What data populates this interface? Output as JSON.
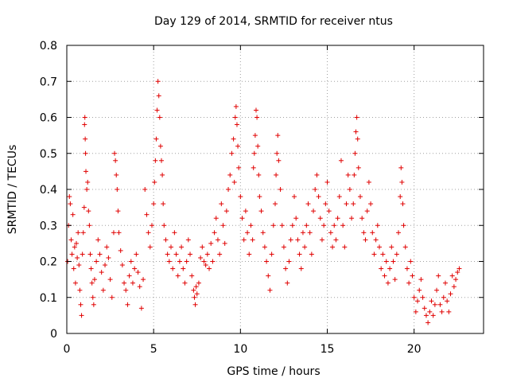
{
  "chart_data": {
    "type": "scatter",
    "title": "Day 129 of 2014, SRMTID for receiver ntus",
    "xlabel": "GPS time / hours",
    "ylabel": "SRMTID / TECUs",
    "xlim": [
      0,
      24
    ],
    "ylim": [
      0,
      0.8
    ],
    "xticks": [
      0,
      5,
      10,
      15,
      20
    ],
    "xtick_labels": [
      "0",
      "5",
      "10",
      "15",
      "20"
    ],
    "yticks": [
      0,
      0.1,
      0.2,
      0.3,
      0.4,
      0.5,
      0.6,
      0.7,
      0.8
    ],
    "ytick_labels": [
      "0",
      "0.1",
      "0.2",
      "0.3",
      "0.4",
      "0.5",
      "0.6",
      "0.7",
      "0.8"
    ],
    "grid": true,
    "marker": "+",
    "color": "#e00000",
    "series": [
      {
        "name": "SRMTID",
        "points": [
          [
            0.05,
            0.2
          ],
          [
            0.1,
            0.3
          ],
          [
            0.15,
            0.38
          ],
          [
            0.2,
            0.36
          ],
          [
            0.25,
            0.26
          ],
          [
            0.3,
            0.22
          ],
          [
            0.35,
            0.33
          ],
          [
            0.4,
            0.18
          ],
          [
            0.45,
            0.24
          ],
          [
            0.5,
            0.14
          ],
          [
            0.55,
            0.25
          ],
          [
            0.6,
            0.21
          ],
          [
            0.65,
            0.28
          ],
          [
            0.7,
            0.19
          ],
          [
            0.75,
            0.12
          ],
          [
            0.8,
            0.08
          ],
          [
            0.85,
            0.05
          ],
          [
            0.9,
            0.22
          ],
          [
            0.95,
            0.28
          ],
          [
            1.0,
            0.35
          ],
          [
            1.02,
            0.58
          ],
          [
            1.04,
            0.6
          ],
          [
            1.06,
            0.54
          ],
          [
            1.08,
            0.5
          ],
          [
            1.1,
            0.45
          ],
          [
            1.15,
            0.4
          ],
          [
            1.2,
            0.42
          ],
          [
            1.25,
            0.34
          ],
          [
            1.3,
            0.3
          ],
          [
            1.35,
            0.22
          ],
          [
            1.4,
            0.18
          ],
          [
            1.45,
            0.14
          ],
          [
            1.5,
            0.1
          ],
          [
            1.55,
            0.08
          ],
          [
            1.6,
            0.15
          ],
          [
            1.7,
            0.2
          ],
          [
            1.8,
            0.26
          ],
          [
            1.9,
            0.22
          ],
          [
            2.0,
            0.17
          ],
          [
            2.1,
            0.12
          ],
          [
            2.2,
            0.19
          ],
          [
            2.3,
            0.24
          ],
          [
            2.4,
            0.21
          ],
          [
            2.5,
            0.15
          ],
          [
            2.6,
            0.1
          ],
          [
            2.7,
            0.28
          ],
          [
            2.75,
            0.5
          ],
          [
            2.8,
            0.48
          ],
          [
            2.85,
            0.44
          ],
          [
            2.9,
            0.4
          ],
          [
            2.95,
            0.34
          ],
          [
            3.0,
            0.28
          ],
          [
            3.1,
            0.23
          ],
          [
            3.2,
            0.19
          ],
          [
            3.3,
            0.14
          ],
          [
            3.4,
            0.12
          ],
          [
            3.5,
            0.08
          ],
          [
            3.6,
            0.16
          ],
          [
            3.7,
            0.2
          ],
          [
            3.8,
            0.14
          ],
          [
            3.9,
            0.18
          ],
          [
            4.0,
            0.22
          ],
          [
            4.1,
            0.17
          ],
          [
            4.2,
            0.13
          ],
          [
            4.3,
            0.07
          ],
          [
            4.4,
            0.15
          ],
          [
            4.5,
            0.4
          ],
          [
            4.6,
            0.33
          ],
          [
            4.7,
            0.28
          ],
          [
            4.8,
            0.24
          ],
          [
            4.9,
            0.3
          ],
          [
            5.0,
            0.36
          ],
          [
            5.05,
            0.42
          ],
          [
            5.1,
            0.48
          ],
          [
            5.15,
            0.54
          ],
          [
            5.2,
            0.62
          ],
          [
            5.25,
            0.7
          ],
          [
            5.3,
            0.66
          ],
          [
            5.35,
            0.6
          ],
          [
            5.4,
            0.52
          ],
          [
            5.45,
            0.48
          ],
          [
            5.5,
            0.44
          ],
          [
            5.55,
            0.36
          ],
          [
            5.6,
            0.3
          ],
          [
            5.7,
            0.26
          ],
          [
            5.8,
            0.22
          ],
          [
            5.9,
            0.2
          ],
          [
            6.0,
            0.24
          ],
          [
            6.1,
            0.18
          ],
          [
            6.2,
            0.28
          ],
          [
            6.3,
            0.22
          ],
          [
            6.4,
            0.16
          ],
          [
            6.5,
            0.2
          ],
          [
            6.6,
            0.24
          ],
          [
            6.7,
            0.18
          ],
          [
            6.8,
            0.14
          ],
          [
            6.9,
            0.2
          ],
          [
            7.0,
            0.26
          ],
          [
            7.1,
            0.22
          ],
          [
            7.2,
            0.16
          ],
          [
            7.3,
            0.12
          ],
          [
            7.35,
            0.1
          ],
          [
            7.4,
            0.08
          ],
          [
            7.45,
            0.13
          ],
          [
            7.5,
            0.11
          ],
          [
            7.6,
            0.14
          ],
          [
            7.7,
            0.21
          ],
          [
            7.8,
            0.24
          ],
          [
            7.9,
            0.2
          ],
          [
            8.0,
            0.19
          ],
          [
            8.1,
            0.22
          ],
          [
            8.2,
            0.18
          ],
          [
            8.3,
            0.25
          ],
          [
            8.4,
            0.2
          ],
          [
            8.5,
            0.28
          ],
          [
            8.6,
            0.32
          ],
          [
            8.7,
            0.26
          ],
          [
            8.8,
            0.22
          ],
          [
            8.9,
            0.36
          ],
          [
            9.0,
            0.3
          ],
          [
            9.1,
            0.25
          ],
          [
            9.2,
            0.34
          ],
          [
            9.3,
            0.4
          ],
          [
            9.4,
            0.44
          ],
          [
            9.5,
            0.5
          ],
          [
            9.6,
            0.54
          ],
          [
            9.65,
            0.42
          ],
          [
            9.7,
            0.6
          ],
          [
            9.75,
            0.63
          ],
          [
            9.8,
            0.58
          ],
          [
            9.85,
            0.52
          ],
          [
            9.9,
            0.46
          ],
          [
            10.0,
            0.38
          ],
          [
            10.1,
            0.32
          ],
          [
            10.2,
            0.26
          ],
          [
            10.3,
            0.34
          ],
          [
            10.4,
            0.28
          ],
          [
            10.5,
            0.22
          ],
          [
            10.6,
            0.3
          ],
          [
            10.7,
            0.26
          ],
          [
            10.75,
            0.46
          ],
          [
            10.8,
            0.5
          ],
          [
            10.85,
            0.55
          ],
          [
            10.9,
            0.62
          ],
          [
            10.95,
            0.6
          ],
          [
            11.0,
            0.52
          ],
          [
            11.05,
            0.44
          ],
          [
            11.1,
            0.38
          ],
          [
            11.2,
            0.34
          ],
          [
            11.3,
            0.28
          ],
          [
            11.4,
            0.24
          ],
          [
            11.5,
            0.2
          ],
          [
            11.6,
            0.16
          ],
          [
            11.7,
            0.12
          ],
          [
            11.8,
            0.22
          ],
          [
            11.9,
            0.3
          ],
          [
            12.0,
            0.36
          ],
          [
            12.05,
            0.44
          ],
          [
            12.1,
            0.5
          ],
          [
            12.15,
            0.55
          ],
          [
            12.2,
            0.48
          ],
          [
            12.3,
            0.4
          ],
          [
            12.4,
            0.3
          ],
          [
            12.5,
            0.24
          ],
          [
            12.6,
            0.18
          ],
          [
            12.7,
            0.14
          ],
          [
            12.8,
            0.2
          ],
          [
            12.9,
            0.26
          ],
          [
            13.0,
            0.3
          ],
          [
            13.1,
            0.38
          ],
          [
            13.2,
            0.32
          ],
          [
            13.3,
            0.26
          ],
          [
            13.4,
            0.22
          ],
          [
            13.5,
            0.18
          ],
          [
            13.6,
            0.28
          ],
          [
            13.7,
            0.24
          ],
          [
            13.8,
            0.3
          ],
          [
            13.9,
            0.36
          ],
          [
            14.0,
            0.28
          ],
          [
            14.1,
            0.22
          ],
          [
            14.2,
            0.34
          ],
          [
            14.3,
            0.4
          ],
          [
            14.4,
            0.44
          ],
          [
            14.5,
            0.38
          ],
          [
            14.6,
            0.32
          ],
          [
            14.7,
            0.26
          ],
          [
            14.8,
            0.3
          ],
          [
            14.9,
            0.36
          ],
          [
            15.0,
            0.42
          ],
          [
            15.1,
            0.34
          ],
          [
            15.2,
            0.28
          ],
          [
            15.3,
            0.24
          ],
          [
            15.4,
            0.3
          ],
          [
            15.5,
            0.26
          ],
          [
            15.6,
            0.32
          ],
          [
            15.7,
            0.38
          ],
          [
            15.8,
            0.48
          ],
          [
            15.9,
            0.3
          ],
          [
            16.0,
            0.24
          ],
          [
            16.1,
            0.36
          ],
          [
            16.2,
            0.44
          ],
          [
            16.3,
            0.4
          ],
          [
            16.4,
            0.32
          ],
          [
            16.5,
            0.36
          ],
          [
            16.55,
            0.44
          ],
          [
            16.6,
            0.5
          ],
          [
            16.65,
            0.56
          ],
          [
            16.7,
            0.6
          ],
          [
            16.75,
            0.54
          ],
          [
            16.8,
            0.46
          ],
          [
            16.9,
            0.38
          ],
          [
            17.0,
            0.32
          ],
          [
            17.1,
            0.28
          ],
          [
            17.2,
            0.26
          ],
          [
            17.3,
            0.34
          ],
          [
            17.4,
            0.42
          ],
          [
            17.5,
            0.36
          ],
          [
            17.6,
            0.28
          ],
          [
            17.7,
            0.22
          ],
          [
            17.8,
            0.26
          ],
          [
            17.9,
            0.3
          ],
          [
            18.0,
            0.24
          ],
          [
            18.1,
            0.18
          ],
          [
            18.2,
            0.22
          ],
          [
            18.3,
            0.16
          ],
          [
            18.4,
            0.2
          ],
          [
            18.5,
            0.14
          ],
          [
            18.6,
            0.18
          ],
          [
            18.7,
            0.24
          ],
          [
            18.8,
            0.2
          ],
          [
            18.9,
            0.15
          ],
          [
            19.0,
            0.22
          ],
          [
            19.1,
            0.28
          ],
          [
            19.2,
            0.38
          ],
          [
            19.25,
            0.46
          ],
          [
            19.3,
            0.42
          ],
          [
            19.35,
            0.36
          ],
          [
            19.4,
            0.3
          ],
          [
            19.5,
            0.24
          ],
          [
            19.6,
            0.18
          ],
          [
            19.7,
            0.14
          ],
          [
            19.8,
            0.2
          ],
          [
            19.9,
            0.16
          ],
          [
            20.0,
            0.1
          ],
          [
            20.1,
            0.06
          ],
          [
            20.2,
            0.09
          ],
          [
            20.3,
            0.12
          ],
          [
            20.4,
            0.15
          ],
          [
            20.5,
            0.1
          ],
          [
            20.6,
            0.07
          ],
          [
            20.7,
            0.05
          ],
          [
            20.8,
            0.03
          ],
          [
            20.9,
            0.06
          ],
          [
            21.0,
            0.09
          ],
          [
            21.1,
            0.05
          ],
          [
            21.2,
            0.08
          ],
          [
            21.3,
            0.12
          ],
          [
            21.4,
            0.16
          ],
          [
            21.5,
            0.08
          ],
          [
            21.6,
            0.06
          ],
          [
            21.7,
            0.1
          ],
          [
            21.8,
            0.14
          ],
          [
            21.9,
            0.09
          ],
          [
            22.0,
            0.06
          ],
          [
            22.1,
            0.11
          ],
          [
            22.2,
            0.16
          ],
          [
            22.3,
            0.13
          ],
          [
            22.4,
            0.15
          ],
          [
            22.5,
            0.17
          ],
          [
            22.6,
            0.18
          ]
        ]
      }
    ]
  }
}
